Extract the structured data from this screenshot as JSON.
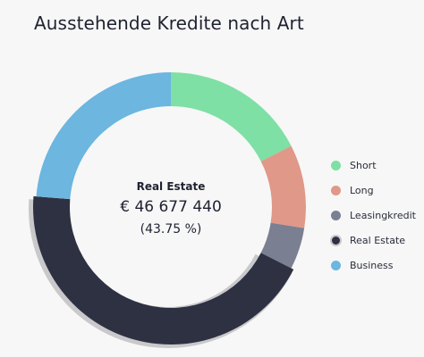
{
  "header": {
    "title": "Ausstehende Kredite nach Art"
  },
  "center": {
    "name": "Real Estate",
    "value": "€ 46 677 440",
    "percent": "(43.75 %)"
  },
  "chart_data": {
    "type": "pie",
    "variant": "donut",
    "title": "Ausstehende Kredite nach Art",
    "categories": [
      "Short",
      "Long",
      "Leasingkredit",
      "Real Estate",
      "Business"
    ],
    "values": [
      17.5,
      10.0,
      5.0,
      43.75,
      23.75
    ],
    "unit": "%",
    "highlighted": "Real Estate",
    "legend_position": "right",
    "colors": [
      "#7ee0a4",
      "#e09888",
      "#7b7f92",
      "#2e3142",
      "#6cb6e0"
    ]
  }
}
